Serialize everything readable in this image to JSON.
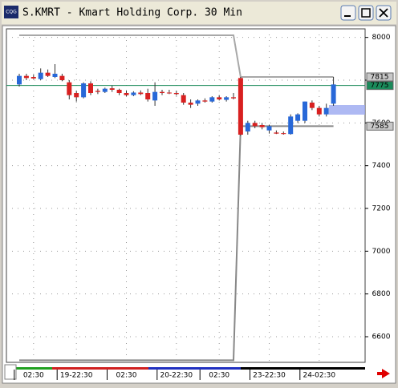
{
  "window_title": "S.KMRT - Kmart Holding Corp. 30 Min",
  "app_icon": "CQG",
  "chart_data": {
    "type": "candlestick",
    "categories": [
      null,
      null,
      "02:30",
      null,
      null,
      null,
      null,
      null,
      "19-22:30",
      null,
      null,
      null,
      null,
      null,
      null,
      "02:30",
      null,
      null,
      null,
      null,
      null,
      null,
      "20-22:30",
      null,
      null,
      null,
      null,
      null,
      "02:30",
      null,
      null,
      null,
      null,
      null,
      null,
      "23-22:30",
      null,
      null,
      null,
      null,
      null,
      null,
      "24-02:30",
      null,
      null
    ],
    "open": [
      7780,
      7820,
      7815,
      7805,
      7835,
      7815,
      7820,
      7790,
      7740,
      7720,
      7785,
      7750,
      7745,
      7762,
      7755,
      7740,
      7730,
      7742,
      7740,
      7705,
      7745,
      7742,
      7740,
      7730,
      7695,
      7690,
      7705,
      7700,
      7720,
      7708,
      7720,
      7810,
      7560,
      7600,
      7590,
      7565,
      7555,
      7552,
      7548,
      7610,
      7610,
      7695,
      7670,
      7640,
      7690
    ],
    "high": [
      7830,
      7830,
      7825,
      7855,
      7850,
      7875,
      7830,
      7800,
      7750,
      7790,
      7795,
      7760,
      7765,
      7775,
      7760,
      7752,
      7748,
      7752,
      7760,
      7790,
      7755,
      7755,
      7750,
      7740,
      7710,
      7710,
      7715,
      7725,
      7730,
      7725,
      7740,
      7815,
      7610,
      7610,
      7600,
      7590,
      7565,
      7560,
      7640,
      7645,
      7700,
      7705,
      7680,
      7690,
      7815
    ],
    "low": [
      7770,
      7800,
      7805,
      7800,
      7815,
      7810,
      7795,
      7710,
      7700,
      7715,
      7730,
      7735,
      7740,
      7745,
      7730,
      7725,
      7725,
      7730,
      7700,
      7680,
      7730,
      7735,
      7728,
      7685,
      7670,
      7680,
      7695,
      7695,
      7705,
      7700,
      7710,
      7540,
      7545,
      7575,
      7570,
      7550,
      7548,
      7545,
      7545,
      7600,
      7600,
      7660,
      7630,
      7630,
      7680
    ],
    "close": [
      7820,
      7810,
      7808,
      7835,
      7820,
      7830,
      7800,
      7730,
      7720,
      7785,
      7740,
      7745,
      7760,
      7755,
      7740,
      7730,
      7742,
      7735,
      7710,
      7745,
      7740,
      7738,
      7735,
      7695,
      7685,
      7705,
      7700,
      7720,
      7710,
      7720,
      7715,
      7545,
      7600,
      7585,
      7580,
      7585,
      7550,
      7548,
      7630,
      7640,
      7700,
      7670,
      7640,
      7670,
      7780
    ],
    "up_color": "#2868d8",
    "down_color": "#d82020",
    "series": [
      {
        "name": "upper",
        "color": "#a8a8a8",
        "values": [
          8010,
          8010,
          8010,
          8010,
          8010,
          8010,
          8010,
          8010,
          8010,
          8010,
          8010,
          8010,
          8010,
          8010,
          8010,
          8010,
          8010,
          8010,
          8010,
          8010,
          8010,
          8010,
          8010,
          8010,
          8010,
          8010,
          8010,
          8010,
          8010,
          8010,
          8010,
          7815,
          7815,
          7815,
          7815,
          7815,
          7815,
          7815,
          7815,
          7815,
          7815,
          7815,
          7815,
          7815,
          7815
        ]
      },
      {
        "name": "lower",
        "color": "#888888",
        "values": [
          6490,
          6490,
          6490,
          6490,
          6490,
          6490,
          6490,
          6490,
          6490,
          6490,
          6490,
          6490,
          6490,
          6490,
          6490,
          6490,
          6490,
          6490,
          6490,
          6490,
          6490,
          6490,
          6490,
          6490,
          6490,
          6490,
          6490,
          6490,
          6490,
          6490,
          6490,
          7585,
          7585,
          7585,
          7585,
          7585,
          7585,
          7585,
          7585,
          7585,
          7585,
          7585,
          7585,
          7585,
          7585
        ]
      }
    ],
    "reference_line": {
      "value": 7775,
      "color": "#1a8a5a"
    },
    "price_tags": [
      {
        "value": 7815,
        "color": "#c8c8c8"
      },
      {
        "value": 7775,
        "color": "#1a8a5a"
      },
      {
        "value": 7585,
        "color": "#c8c8c8"
      }
    ],
    "ylim": [
      6480,
      8040
    ],
    "yticks": [
      6600,
      6800,
      7000,
      7200,
      7400,
      7600,
      7800,
      8000
    ],
    "grid": true
  }
}
